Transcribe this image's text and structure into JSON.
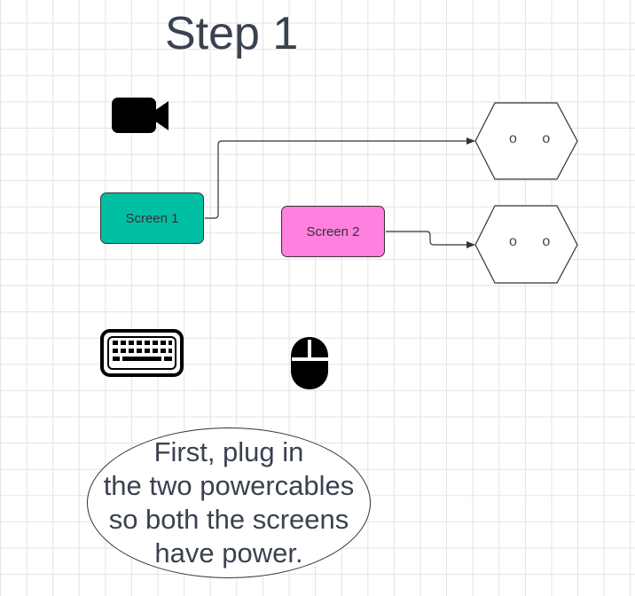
{
  "title": "Step 1",
  "nodes": {
    "screen1": {
      "label": "Screen 1",
      "fill": "#00bfa5"
    },
    "screen2": {
      "label": "Screen 2",
      "fill": "#ff80df"
    },
    "socket1": {
      "label": "o o"
    },
    "socket2": {
      "label": "o o"
    }
  },
  "icons": {
    "camera": "video-camera-icon",
    "keyboard": "keyboard-icon",
    "mouse": "mouse-icon"
  },
  "instruction": {
    "lines": [
      "First, plug in",
      "the two powercables",
      "so both the screens",
      "have power."
    ]
  },
  "colors": {
    "stroke": "#333333",
    "text": "#3a4150"
  }
}
